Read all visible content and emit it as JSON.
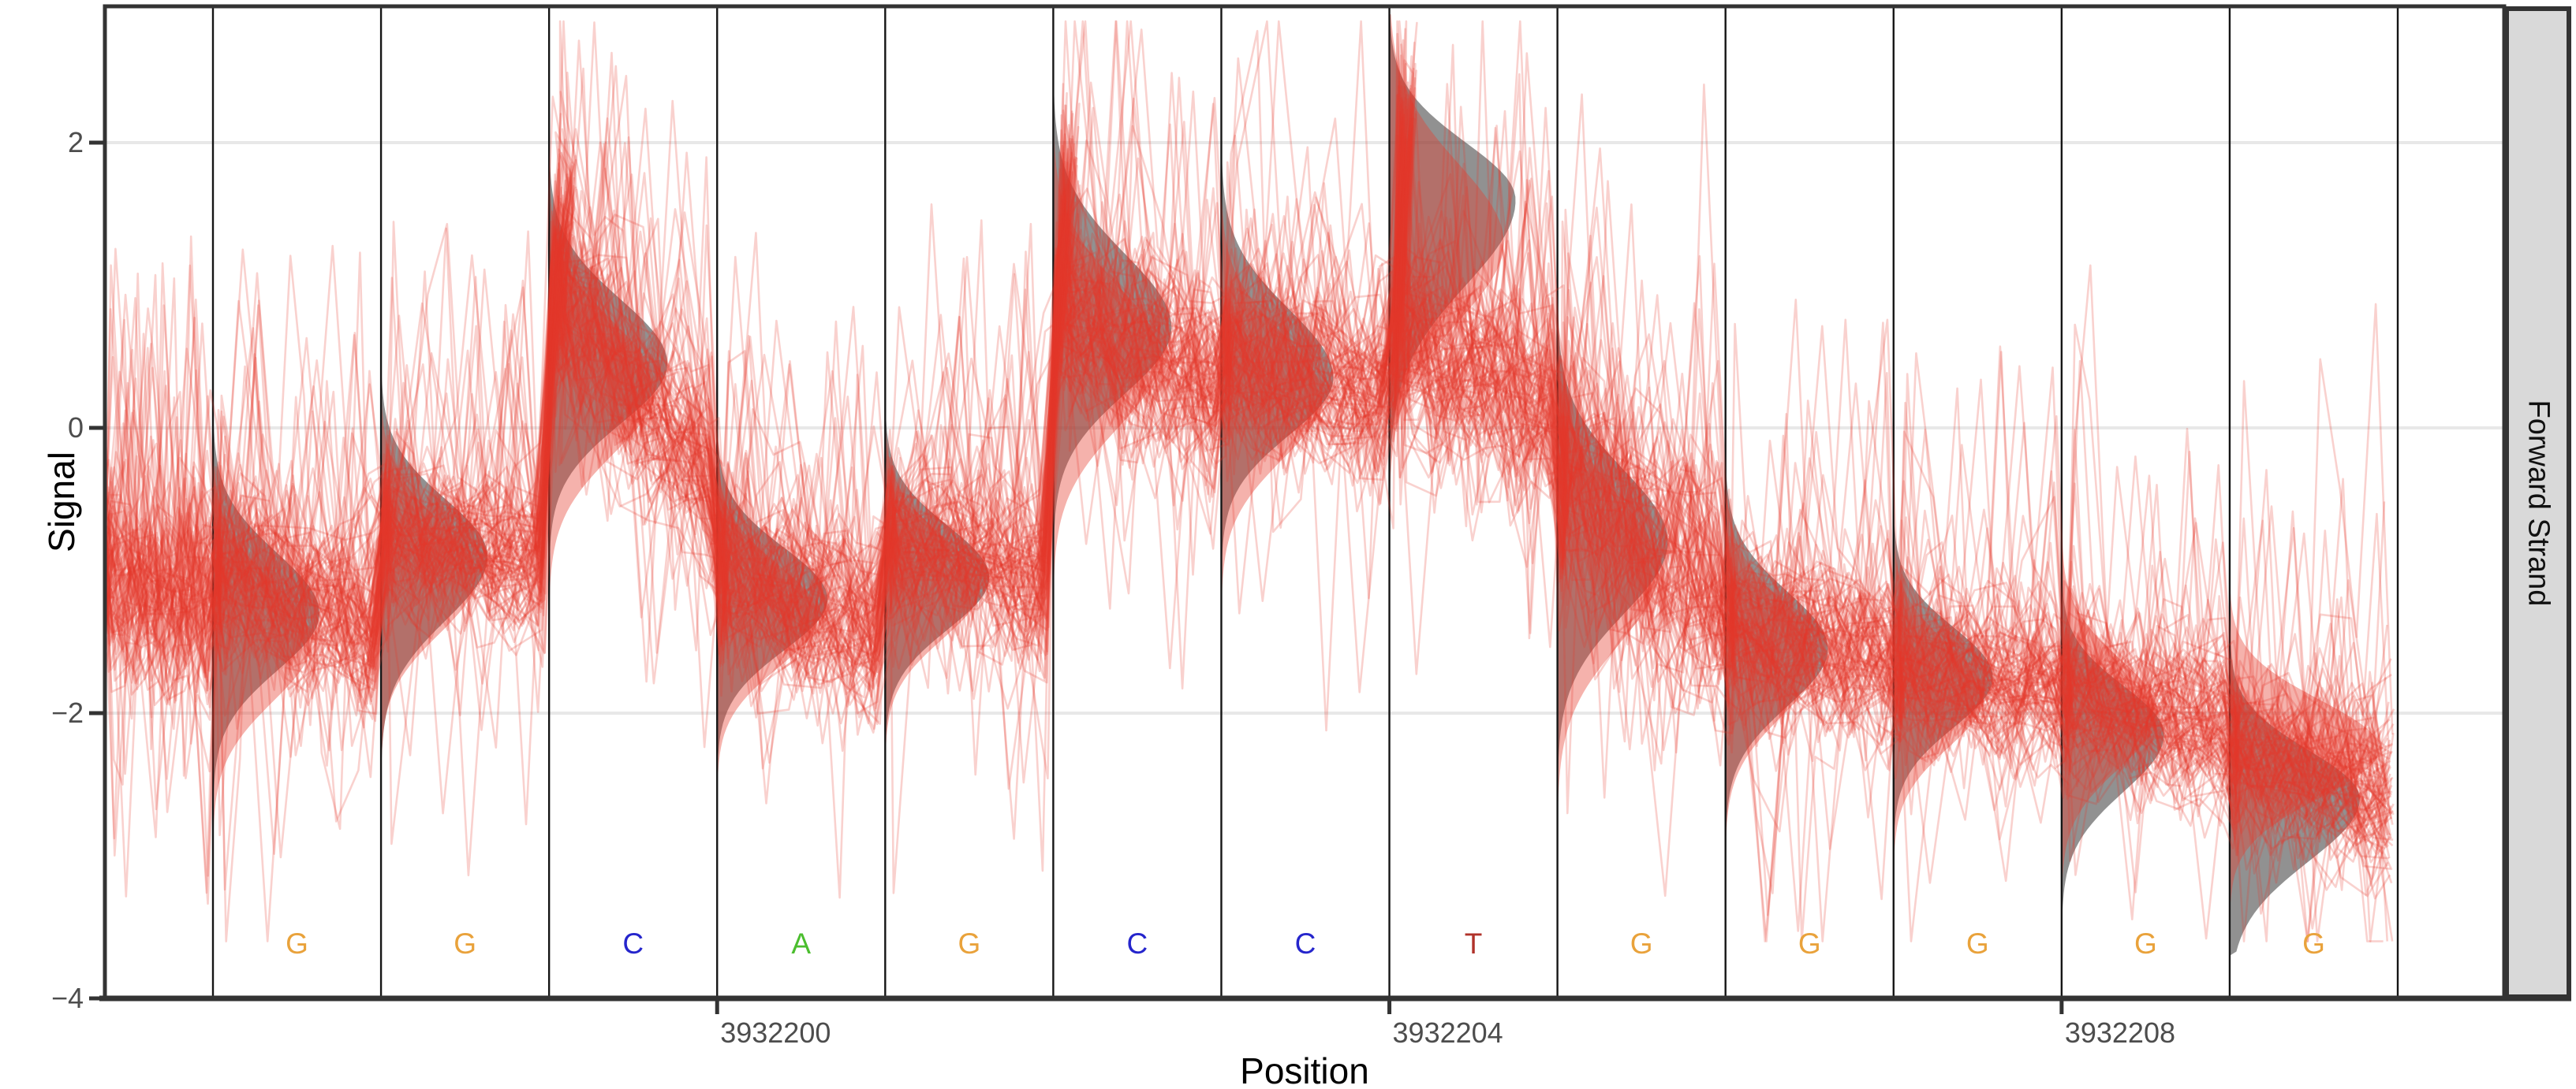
{
  "figure": {
    "kind": "nanopore signal squiggle plot, faceted",
    "background": "#ffffff"
  },
  "strip": {
    "label": "Forward Strand",
    "bg": "#D9D9D9",
    "border": "#333333"
  },
  "y_axis": {
    "title": "Signal",
    "ticks": [
      {
        "label": "2",
        "value": 2
      },
      {
        "label": "0",
        "value": 0
      },
      {
        "label": "−2",
        "value": -2
      },
      {
        "label": "−4",
        "value": -4
      }
    ],
    "range": [
      -4,
      2.96
    ],
    "tick_color": "#4D4D4D"
  },
  "x_axis": {
    "title": "Position",
    "ticks": [
      {
        "label": "3932200",
        "boundary_index": 3
      },
      {
        "label": "3932204",
        "boundary_index": 7
      },
      {
        "label": "3932208",
        "boundary_index": 11
      }
    ],
    "tick_color": "#4D4D4D"
  },
  "chart_data": {
    "type": "area",
    "subtype": "per-base signal distributions (grey model density, red read density) with overlaid read traces",
    "title": "",
    "xlabel": "Position",
    "ylabel": "Signal",
    "ylim": [
      -4,
      2.96
    ],
    "grid": "major horizontal only",
    "legend_position": "none",
    "n_reads": 105,
    "colors": {
      "trace": "#E6392B",
      "read_density": "#E53E30",
      "model_density": "#4D4D4D",
      "gridline": "#E8E8E8",
      "boundary_line": "#151515",
      "panel_border": "#333333",
      "base_A": "#4BBE2E",
      "base_C": "#2525CC",
      "base_G": "#E9A23B",
      "base_T": "#B0322A"
    },
    "lead_in": {
      "mean_in": -1.05,
      "mean_out": -1.25,
      "sd": 0.34,
      "spike": 0.07
    },
    "positions": [
      {
        "position": 3932197,
        "base": "G",
        "base_color": "#E9A23B",
        "model": {
          "mean": -1.3,
          "sd_up": 0.42,
          "sd_dn": 0.4,
          "w": 135
        },
        "read_density": {
          "mean": -1.5,
          "sd": 0.42,
          "w": 125
        },
        "reads": {
          "mean_in": -1.0,
          "mean_out": -1.45,
          "sd": 0.3,
          "spike": 0.05
        }
      },
      {
        "position": 3932198,
        "base": "G",
        "base_color": "#E9A23B",
        "model": {
          "mean": -0.9,
          "sd_up": 0.4,
          "sd_dn": 0.45,
          "w": 135
        },
        "read_density": {
          "mean": -1.05,
          "sd": 0.4,
          "w": 120
        },
        "reads": {
          "mean_in": -0.75,
          "mean_out": -0.95,
          "sd": 0.26,
          "spike": 0.05
        }
      },
      {
        "position": 3932199,
        "base": "C",
        "base_color": "#2525CC",
        "model": {
          "mean": 0.45,
          "sd_up": 0.45,
          "sd_dn": 0.42,
          "w": 150
        },
        "read_density": {
          "mean": 0.28,
          "sd": 0.46,
          "w": 135
        },
        "reads": {
          "mean_in": 0.85,
          "mean_out": -0.3,
          "sd": 0.34,
          "spike": 0.06,
          "overshoot": 1.2
        }
      },
      {
        "position": 3932200,
        "base": "A",
        "base_color": "#4BBE2E",
        "model": {
          "mean": -1.2,
          "sd_up": 0.36,
          "sd_dn": 0.36,
          "w": 140
        },
        "read_density": {
          "mean": -1.32,
          "sd": 0.36,
          "w": 128
        },
        "reads": {
          "mean_in": -1.0,
          "mean_out": -1.45,
          "sd": 0.3,
          "spike": 0.06
        }
      },
      {
        "position": 3932201,
        "base": "G",
        "base_color": "#E9A23B",
        "model": {
          "mean": -1.05,
          "sd_up": 0.36,
          "sd_dn": 0.36,
          "w": 132
        },
        "read_density": {
          "mean": -1.12,
          "sd": 0.36,
          "w": 120
        },
        "reads": {
          "mean_in": -0.8,
          "mean_out": -1.1,
          "sd": 0.28,
          "spike": 0.05
        }
      },
      {
        "position": 3932202,
        "base": "C",
        "base_color": "#2525CC",
        "model": {
          "mean": 0.7,
          "sd_up": 0.52,
          "sd_dn": 0.46,
          "w": 150
        },
        "read_density": {
          "mean": 0.5,
          "sd": 0.5,
          "w": 135
        },
        "reads": {
          "mean_in": 0.75,
          "mean_out": 0.3,
          "sd": 0.34,
          "spike": 0.06,
          "overshoot": 1.5
        }
      },
      {
        "position": 3932203,
        "base": "C",
        "base_color": "#2525CC",
        "model": {
          "mean": 0.35,
          "sd_up": 0.48,
          "sd_dn": 0.4,
          "w": 142
        },
        "read_density": {
          "mean": 0.22,
          "sd": 0.44,
          "w": 128
        },
        "reads": {
          "mean_in": 0.45,
          "mean_out": 0.2,
          "sd": 0.3,
          "spike": 0.05
        }
      },
      {
        "position": 3932204,
        "base": "T",
        "base_color": "#B0322A",
        "model": {
          "mean": 1.6,
          "sd_up": 0.4,
          "sd_dn": 0.6,
          "w": 160
        },
        "read_density": {
          "mean": 1.3,
          "sd": 0.55,
          "w": 145
        },
        "reads": {
          "mean_in": 0.55,
          "mean_out": 0.2,
          "sd": 0.34,
          "spike": 0.06,
          "overshoot": 2.0
        }
      },
      {
        "position": 3932205,
        "base": "G",
        "base_color": "#E9A23B",
        "model": {
          "mean": -0.8,
          "sd_up": 0.5,
          "sd_dn": 0.5,
          "w": 140
        },
        "read_density": {
          "mean": -1.0,
          "sd": 0.52,
          "w": 128
        },
        "reads": {
          "mean_in": -0.35,
          "mean_out": -1.2,
          "sd": 0.42,
          "spike": 0.06
        }
      },
      {
        "position": 3932206,
        "base": "G",
        "base_color": "#E9A23B",
        "model": {
          "mean": -1.55,
          "sd_up": 0.4,
          "sd_dn": 0.4,
          "w": 130
        },
        "read_density": {
          "mean": -1.62,
          "sd": 0.4,
          "w": 118
        },
        "reads": {
          "mean_in": -1.45,
          "mean_out": -1.65,
          "sd": 0.26,
          "spike": 0.05
        }
      },
      {
        "position": 3932207,
        "base": "G",
        "base_color": "#E9A23B",
        "model": {
          "mean": -1.75,
          "sd_up": 0.35,
          "sd_dn": 0.35,
          "w": 126
        },
        "read_density": {
          "mean": -1.88,
          "sd": 0.36,
          "w": 115
        },
        "reads": {
          "mean_in": -1.7,
          "mean_out": -1.85,
          "sd": 0.24,
          "spike": 0.04
        }
      },
      {
        "position": 3932208,
        "base": "G",
        "base_color": "#E9A23B",
        "model": {
          "mean": -2.15,
          "sd_up": 0.34,
          "sd_dn": 0.4,
          "w": 130
        },
        "read_density": {
          "mean": -2.0,
          "sd": 0.38,
          "w": 122
        },
        "reads": {
          "mean_in": -1.9,
          "mean_out": -2.1,
          "sd": 0.26,
          "spike": 0.04
        }
      },
      {
        "position": 3932209,
        "base": "G",
        "base_color": "#E9A23B",
        "model": {
          "mean": -2.6,
          "sd_up": 0.34,
          "sd_dn": 0.44,
          "w": 165
        },
        "read_density": {
          "mean": -2.25,
          "sd": 0.34,
          "w": 190
        },
        "reads": {
          "mean_in": -2.3,
          "mean_out": -2.6,
          "sd": 0.26,
          "spike": 0.04
        }
      }
    ]
  }
}
